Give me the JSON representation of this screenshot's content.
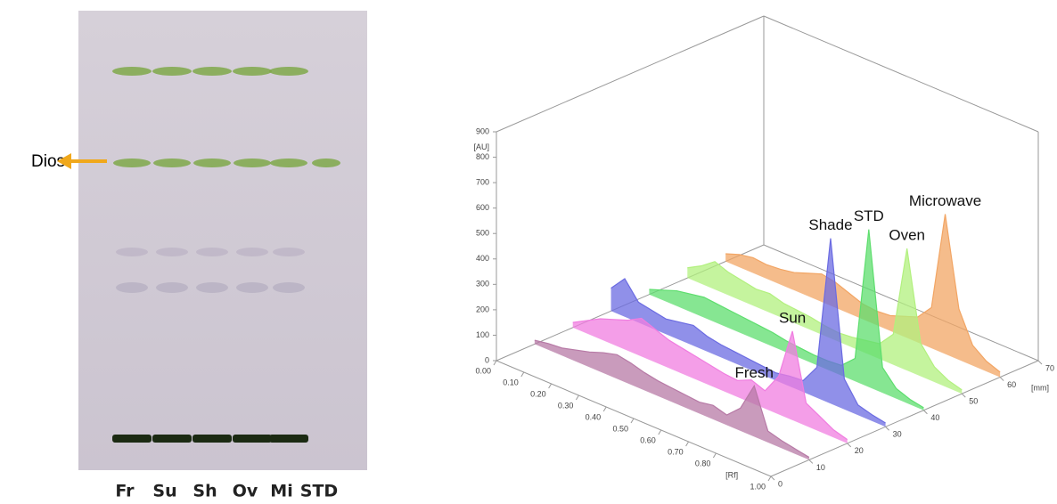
{
  "plate": {
    "lanes": [
      "Fr",
      "Su",
      "Sh",
      "Ov",
      "Mi",
      "STD"
    ],
    "marker": "Dios"
  },
  "chart_data": {
    "type": "waterfall3d",
    "y_label": "[AU]",
    "x_label": "[Rf]",
    "z_label": "[mm]",
    "ylim": [
      0,
      900
    ],
    "yticks": [
      0,
      100,
      200,
      300,
      400,
      500,
      600,
      700,
      800,
      900
    ],
    "xlim": [
      0,
      1
    ],
    "xticks": [
      {
        "value": 0,
        "label": "0.00"
      },
      {
        "value": 0.1,
        "label": "0.10"
      },
      {
        "value": 0.2,
        "label": "0.20"
      },
      {
        "value": 0.3,
        "label": "0.30"
      },
      {
        "value": 0.4,
        "label": "0.40"
      },
      {
        "value": 0.5,
        "label": "0.50"
      },
      {
        "value": 0.6,
        "label": "0.60"
      },
      {
        "value": 0.7,
        "label": "0.70"
      },
      {
        "value": 0.8,
        "label": "0.80"
      },
      {
        "value": 1,
        "label": "1.00"
      }
    ],
    "zlim": [
      0,
      70
    ],
    "zticks": [
      0,
      10,
      20,
      30,
      40,
      50,
      60,
      70
    ],
    "x": [
      0,
      0.05,
      0.1,
      0.15,
      0.2,
      0.25,
      0.3,
      0.35,
      0.4,
      0.45,
      0.5,
      0.55,
      0.6,
      0.65,
      0.7,
      0.75,
      0.8,
      0.85,
      0.9,
      0.95,
      1
    ],
    "series": [
      {
        "name": "Fresh",
        "depth": 10,
        "color": "#b77aa6",
        "values": [
          15,
          25,
          30,
          45,
          60,
          80,
          95,
          85,
          70,
          60,
          55,
          50,
          45,
          55,
          40,
          90,
          200,
          45,
          30,
          20,
          10
        ]
      },
      {
        "name": "Sun",
        "depth": 20,
        "color": "#f07de0",
        "values": [
          20,
          50,
          80,
          100,
          120,
          150,
          130,
          110,
          100,
          90,
          80,
          70,
          65,
          90,
          70,
          150,
          350,
          90,
          60,
          30,
          15
        ]
      },
      {
        "name": "Shade",
        "depth": 30,
        "color": "#6b6be2",
        "values": [
          90,
          150,
          80,
          70,
          60,
          70,
          80,
          60,
          50,
          45,
          40,
          35,
          30,
          40,
          45,
          120,
          650,
          120,
          40,
          25,
          15
        ]
      },
      {
        "name": "STD",
        "depth": 40,
        "color": "#5ede6e",
        "values": [
          20,
          40,
          60,
          70,
          80,
          75,
          70,
          65,
          60,
          55,
          45,
          40,
          35,
          35,
          40,
          90,
          620,
          100,
          40,
          20,
          10
        ]
      },
      {
        "name": "Oven",
        "depth": 50,
        "color": "#b2f07e",
        "values": [
          40,
          70,
          110,
          90,
          80,
          70,
          75,
          60,
          55,
          50,
          40,
          35,
          40,
          50,
          60,
          120,
          480,
          130,
          60,
          30,
          15
        ]
      },
      {
        "name": "Microwave",
        "depth": 60,
        "color": "#f2a564",
        "values": [
          30,
          50,
          60,
          55,
          60,
          70,
          90,
          110,
          100,
          80,
          60,
          55,
          60,
          80,
          100,
          160,
          550,
          200,
          80,
          40,
          20
        ]
      }
    ]
  }
}
